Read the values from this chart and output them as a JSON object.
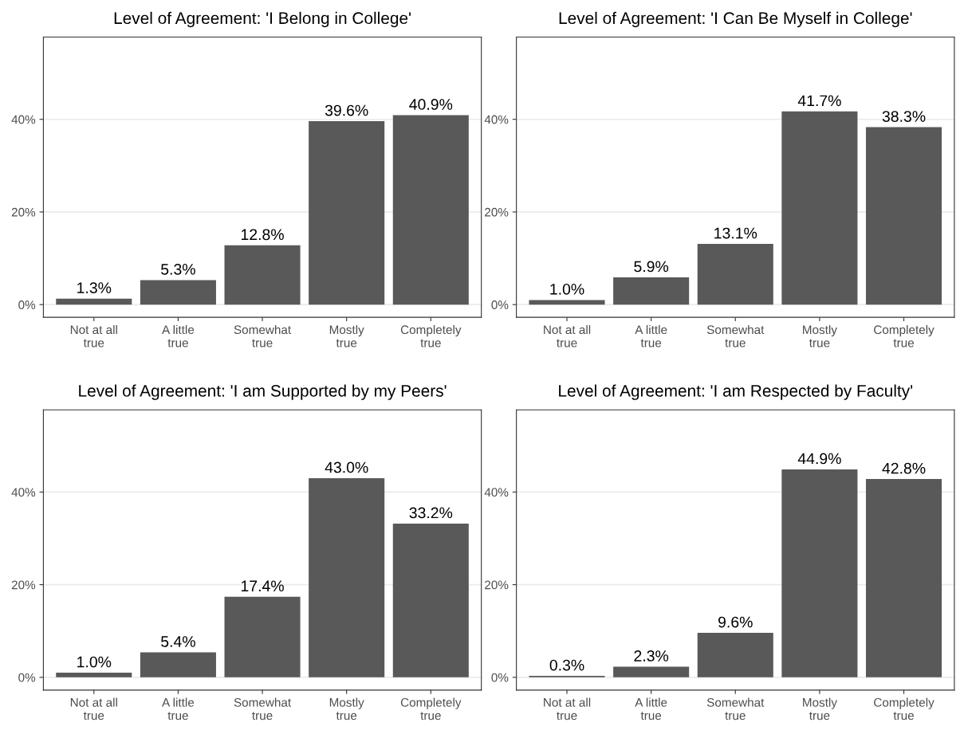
{
  "chart_data": [
    {
      "type": "bar",
      "title": "Level of Agreement: 'I Belong in College'",
      "categories": [
        "Not at all\ntrue",
        "A little\ntrue",
        "Somewhat\ntrue",
        "Mostly\ntrue",
        "Completely\ntrue"
      ],
      "values": [
        1.3,
        5.3,
        12.8,
        39.6,
        40.9
      ],
      "value_labels": [
        "1.3%",
        "5.3%",
        "12.8%",
        "39.6%",
        "40.9%"
      ],
      "color": "#595959",
      "ylim": [
        -2.75,
        57.75
      ],
      "yticks": [
        {
          "value": 0,
          "label": "0%"
        },
        {
          "value": 20,
          "label": "20%"
        },
        {
          "value": 40,
          "label": "40%"
        }
      ],
      "grid": "y",
      "legend": false
    },
    {
      "type": "bar",
      "title": "Level of Agreement: 'I Can Be Myself in College'",
      "categories": [
        "Not at all\ntrue",
        "A little\ntrue",
        "Somewhat\ntrue",
        "Mostly\ntrue",
        "Completely\ntrue"
      ],
      "values": [
        1.0,
        5.9,
        13.1,
        41.7,
        38.3
      ],
      "value_labels": [
        "1.0%",
        "5.9%",
        "13.1%",
        "41.7%",
        "38.3%"
      ],
      "color": "#595959",
      "ylim": [
        -2.75,
        57.75
      ],
      "yticks": [
        {
          "value": 0,
          "label": "0%"
        },
        {
          "value": 20,
          "label": "20%"
        },
        {
          "value": 40,
          "label": "40%"
        }
      ],
      "grid": "y",
      "legend": false
    },
    {
      "type": "bar",
      "title": "Level of Agreement: 'I am Supported by my Peers'",
      "categories": [
        "Not at all\ntrue",
        "A little\ntrue",
        "Somewhat\ntrue",
        "Mostly\ntrue",
        "Completely\ntrue"
      ],
      "values": [
        1.0,
        5.4,
        17.4,
        43.0,
        33.2
      ],
      "value_labels": [
        "1.0%",
        "5.4%",
        "17.4%",
        "43.0%",
        "33.2%"
      ],
      "color": "#595959",
      "ylim": [
        -2.75,
        57.75
      ],
      "yticks": [
        {
          "value": 0,
          "label": "0%"
        },
        {
          "value": 20,
          "label": "20%"
        },
        {
          "value": 40,
          "label": "40%"
        }
      ],
      "grid": "y",
      "legend": false
    },
    {
      "type": "bar",
      "title": "Level of Agreement: 'I am Respected by Faculty'",
      "categories": [
        "Not at all\ntrue",
        "A little\ntrue",
        "Somewhat\ntrue",
        "Mostly\ntrue",
        "Completely\ntrue"
      ],
      "values": [
        0.3,
        2.3,
        9.6,
        44.9,
        42.8
      ],
      "value_labels": [
        "0.3%",
        "2.3%",
        "9.6%",
        "44.9%",
        "42.8%"
      ],
      "color": "#595959",
      "ylim": [
        -2.75,
        57.75
      ],
      "yticks": [
        {
          "value": 0,
          "label": "0%"
        },
        {
          "value": 20,
          "label": "20%"
        },
        {
          "value": 40,
          "label": "40%"
        }
      ],
      "grid": "y",
      "legend": false
    }
  ]
}
